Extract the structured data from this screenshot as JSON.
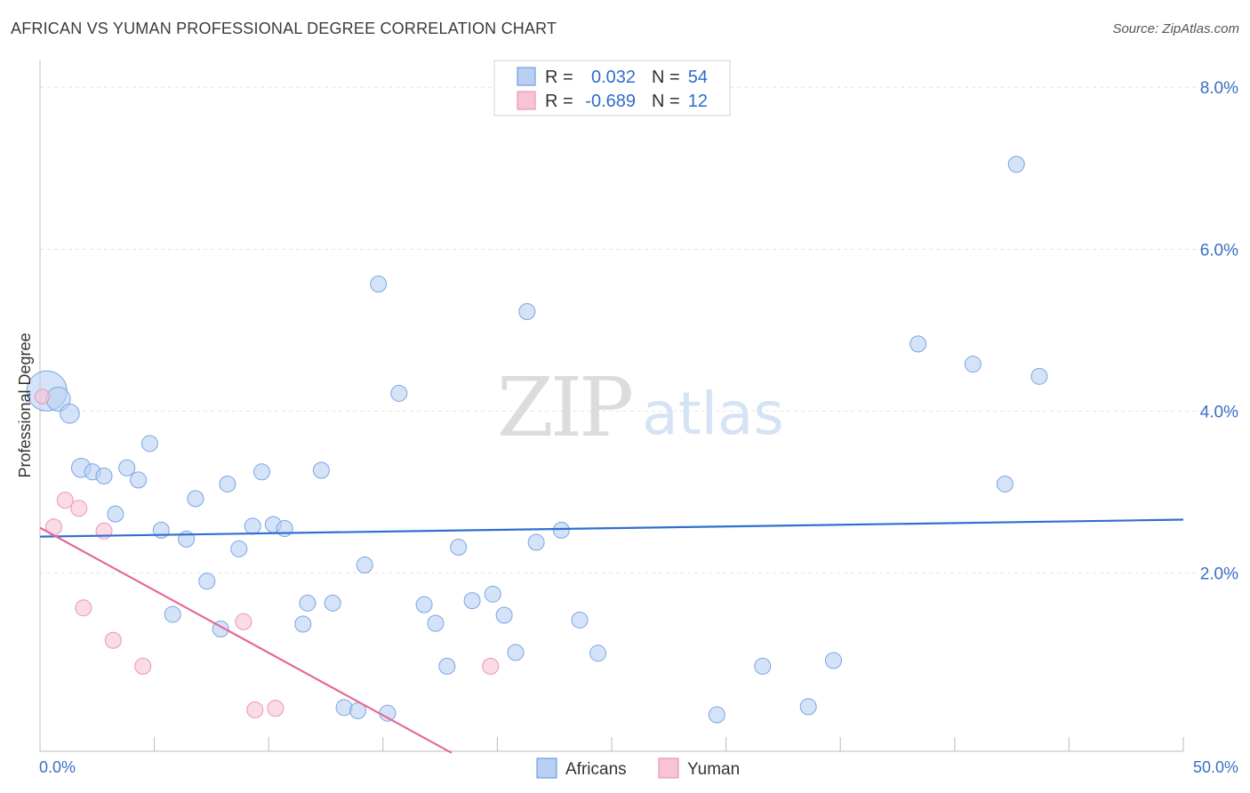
{
  "header": {
    "title": "AFRICAN VS YUMAN PROFESSIONAL DEGREE CORRELATION CHART",
    "source": "Source: ZipAtlas.com"
  },
  "watermark": {
    "zip": "ZIP",
    "atlas": "atlas"
  },
  "colors": {
    "blue": "#2f6fd0",
    "pink": "#e56a98",
    "blue_fill": "#b9d0f3",
    "pink_fill": "#f7c3d5"
  },
  "legend": {
    "africans": {
      "r_label": "R =",
      "r_value": "0.032",
      "n_label": "N =",
      "n_value": "54"
    },
    "yuman": {
      "r_label": "R =",
      "r_value": "-0.689",
      "n_label": "N =",
      "n_value": "12"
    }
  },
  "bottom_legend": {
    "africans": "Africans",
    "yuman": "Yuman"
  },
  "chart_data": {
    "type": "scatter",
    "title": "AFRICAN VS YUMAN PROFESSIONAL DEGREE CORRELATION CHART",
    "xlabel": "",
    "ylabel": "Professional Degree",
    "xlim": [
      0,
      50
    ],
    "ylim": [
      -0.2,
      8.2
    ],
    "x_tick_labels": {
      "min": "0.0%",
      "max": "50.0%"
    },
    "y_ticks": [
      2,
      4,
      6,
      8
    ],
    "y_tick_labels": [
      "2.0%",
      "4.0%",
      "6.0%",
      "8.0%"
    ],
    "series": [
      {
        "name": "Africans",
        "color": "#2f6fd0",
        "trend": {
          "x": [
            0,
            50
          ],
          "y": [
            2.45,
            2.66
          ]
        },
        "points": [
          {
            "x": 0.3,
            "y": 4.25,
            "s": 2.5
          },
          {
            "x": 0.8,
            "y": 4.15,
            "s": 1.5
          },
          {
            "x": 1.3,
            "y": 3.97,
            "s": 1.2
          },
          {
            "x": 1.8,
            "y": 3.3,
            "s": 1.2
          },
          {
            "x": 2.3,
            "y": 3.25,
            "s": 1
          },
          {
            "x": 2.8,
            "y": 3.2,
            "s": 1
          },
          {
            "x": 3.3,
            "y": 2.73,
            "s": 1
          },
          {
            "x": 3.8,
            "y": 3.3,
            "s": 1
          },
          {
            "x": 4.3,
            "y": 3.15,
            "s": 1
          },
          {
            "x": 4.8,
            "y": 3.6,
            "s": 1
          },
          {
            "x": 5.3,
            "y": 2.53,
            "s": 1
          },
          {
            "x": 5.8,
            "y": 1.49,
            "s": 1
          },
          {
            "x": 6.4,
            "y": 2.42,
            "s": 1
          },
          {
            "x": 6.8,
            "y": 2.92,
            "s": 1
          },
          {
            "x": 7.3,
            "y": 1.9,
            "s": 1
          },
          {
            "x": 7.9,
            "y": 1.31,
            "s": 1
          },
          {
            "x": 8.2,
            "y": 3.1,
            "s": 1
          },
          {
            "x": 8.7,
            "y": 2.3,
            "s": 1
          },
          {
            "x": 9.3,
            "y": 2.58,
            "s": 1
          },
          {
            "x": 9.7,
            "y": 3.25,
            "s": 1
          },
          {
            "x": 10.2,
            "y": 2.6,
            "s": 1
          },
          {
            "x": 10.7,
            "y": 2.55,
            "s": 1
          },
          {
            "x": 11.5,
            "y": 1.37,
            "s": 1
          },
          {
            "x": 11.7,
            "y": 1.63,
            "s": 1
          },
          {
            "x": 12.3,
            "y": 3.27,
            "s": 1
          },
          {
            "x": 12.8,
            "y": 1.63,
            "s": 1
          },
          {
            "x": 13.3,
            "y": 0.34,
            "s": 1
          },
          {
            "x": 13.9,
            "y": 0.3,
            "s": 1
          },
          {
            "x": 14.2,
            "y": 2.1,
            "s": 1
          },
          {
            "x": 14.8,
            "y": 5.57,
            "s": 1
          },
          {
            "x": 15.2,
            "y": 0.27,
            "s": 1
          },
          {
            "x": 15.7,
            "y": 4.22,
            "s": 1
          },
          {
            "x": 16.8,
            "y": 1.61,
            "s": 1
          },
          {
            "x": 17.3,
            "y": 1.38,
            "s": 1
          },
          {
            "x": 17.8,
            "y": 0.85,
            "s": 1
          },
          {
            "x": 18.3,
            "y": 2.32,
            "s": 1
          },
          {
            "x": 18.9,
            "y": 1.66,
            "s": 1
          },
          {
            "x": 19.8,
            "y": 1.74,
            "s": 1
          },
          {
            "x": 20.3,
            "y": 1.48,
            "s": 1
          },
          {
            "x": 20.8,
            "y": 1.02,
            "s": 1
          },
          {
            "x": 21.3,
            "y": 5.23,
            "s": 1
          },
          {
            "x": 21.7,
            "y": 2.38,
            "s": 1
          },
          {
            "x": 22.8,
            "y": 2.53,
            "s": 1
          },
          {
            "x": 23.6,
            "y": 1.42,
            "s": 1
          },
          {
            "x": 24.4,
            "y": 1.01,
            "s": 1
          },
          {
            "x": 29.6,
            "y": 0.25,
            "s": 1
          },
          {
            "x": 31.6,
            "y": 0.85,
            "s": 1
          },
          {
            "x": 33.6,
            "y": 0.35,
            "s": 1
          },
          {
            "x": 34.7,
            "y": 0.92,
            "s": 1
          },
          {
            "x": 38.4,
            "y": 4.83,
            "s": 1
          },
          {
            "x": 40.8,
            "y": 4.58,
            "s": 1
          },
          {
            "x": 42.2,
            "y": 3.1,
            "s": 1
          },
          {
            "x": 42.7,
            "y": 7.05,
            "s": 1
          },
          {
            "x": 43.7,
            "y": 4.43,
            "s": 1
          }
        ]
      },
      {
        "name": "Yuman",
        "color": "#e56a98",
        "trend": {
          "x": [
            0,
            18
          ],
          "y": [
            2.56,
            -0.22
          ]
        },
        "points": [
          {
            "x": 0.1,
            "y": 4.18,
            "s": 0.9
          },
          {
            "x": 0.6,
            "y": 2.57,
            "s": 1
          },
          {
            "x": 1.1,
            "y": 2.9,
            "s": 1
          },
          {
            "x": 1.7,
            "y": 2.8,
            "s": 1
          },
          {
            "x": 1.9,
            "y": 1.57,
            "s": 1
          },
          {
            "x": 2.8,
            "y": 2.52,
            "s": 1
          },
          {
            "x": 3.2,
            "y": 1.17,
            "s": 1
          },
          {
            "x": 4.5,
            "y": 0.85,
            "s": 1
          },
          {
            "x": 8.9,
            "y": 1.4,
            "s": 1
          },
          {
            "x": 9.4,
            "y": 0.31,
            "s": 1
          },
          {
            "x": 10.3,
            "y": 0.33,
            "s": 1
          },
          {
            "x": 19.7,
            "y": 0.85,
            "s": 1
          }
        ]
      }
    ]
  }
}
